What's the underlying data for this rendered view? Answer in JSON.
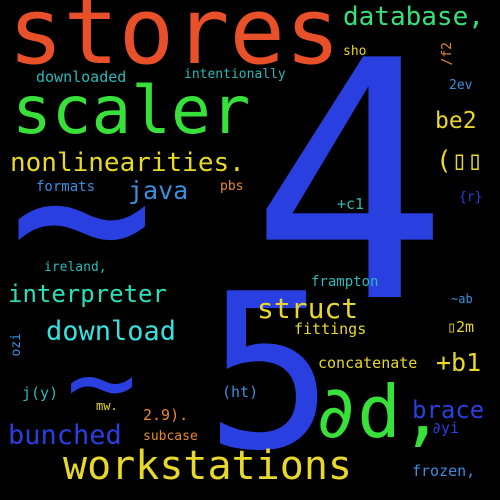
{
  "wordcloud": {
    "background": "#000000",
    "words": [
      {
        "id": "stores",
        "text": "stores",
        "color": "#e8502a"
      },
      {
        "id": "four",
        "text": "4",
        "color": "#2a3fe0"
      },
      {
        "id": "tilde-big",
        "text": "~",
        "color": "#2a3fe0"
      },
      {
        "id": "scaler",
        "text": "scaler",
        "color": "#38e03a"
      },
      {
        "id": "database",
        "text": "database,",
        "color": "#38e07a"
      },
      {
        "id": "nonlinearities",
        "text": "nonlinearities.",
        "color": "#e8d82a"
      },
      {
        "id": "java",
        "text": "java",
        "color": "#3a8fe0"
      },
      {
        "id": "downloaded",
        "text": "downloaded",
        "color": "#2ab8b8"
      },
      {
        "id": "intentionally",
        "text": "intentionally",
        "color": "#2ab8b8"
      },
      {
        "id": "sho",
        "text": "sho",
        "color": "#e8d82a"
      },
      {
        "id": "f2",
        "text": "/f2",
        "color": "#e88a2a"
      },
      {
        "id": "2ev",
        "text": "2ev",
        "color": "#3a8fe0"
      },
      {
        "id": "be2",
        "text": "be2",
        "color": "#e8d82a"
      },
      {
        "id": "paren-glyph",
        "text": "(▯▯",
        "color": "#e8d82a"
      },
      {
        "id": "formats",
        "text": "formats",
        "color": "#3a8fe0"
      },
      {
        "id": "pbs",
        "text": "pbs",
        "color": "#e88a2a"
      },
      {
        "id": "c1",
        "text": "+c1",
        "color": "#2ab8b8"
      },
      {
        "id": "r-brace",
        "text": "{r}",
        "color": "#2a3fe0"
      },
      {
        "id": "ireland",
        "text": "ireland,",
        "color": "#2ab8b8"
      },
      {
        "id": "interpreter",
        "text": "interpreter",
        "color": "#2ae0b8"
      },
      {
        "id": "frampton",
        "text": "frampton",
        "color": "#2ab8b8"
      },
      {
        "id": "five",
        "text": "5",
        "color": "#2a3fe0"
      },
      {
        "id": "struct",
        "text": "struct",
        "color": "#e8d82a"
      },
      {
        "id": "ab",
        "text": "~ab",
        "color": "#3a8fe0"
      },
      {
        "id": "download",
        "text": "download",
        "color": "#38e0e0"
      },
      {
        "id": "fittings",
        "text": "fittings",
        "color": "#e8d82a"
      },
      {
        "id": "2m",
        "text": "▯2m",
        "color": "#e8d82a"
      },
      {
        "id": "ozi",
        "text": "ozi",
        "color": "#3a8fe0"
      },
      {
        "id": "tilde-small",
        "text": "~",
        "color": "#2a3fe0"
      },
      {
        "id": "concatenate",
        "text": "concatenate",
        "color": "#e8d82a"
      },
      {
        "id": "b1",
        "text": "+b1",
        "color": "#e8d82a"
      },
      {
        "id": "jy",
        "text": "j(y)",
        "color": "#2ab8b8"
      },
      {
        "id": "mw",
        "text": "mw.",
        "color": "#e8d82a"
      },
      {
        "id": "ht",
        "text": "(ht)",
        "color": "#3a8fe0"
      },
      {
        "id": "dd",
        "text": "∂d,",
        "color": "#38e03a"
      },
      {
        "id": "brace",
        "text": "brace",
        "color": "#2a3fe0"
      },
      {
        "id": "dyi",
        "text": "∂yi",
        "color": "#2a3fe0"
      },
      {
        "id": "bunched",
        "text": "bunched",
        "color": "#2a3fe0"
      },
      {
        "id": "29",
        "text": "2.9).",
        "color": "#e88a2a"
      },
      {
        "id": "subcase",
        "text": "subcase",
        "color": "#e88a2a"
      },
      {
        "id": "workstations",
        "text": "workstations",
        "color": "#e8d82a"
      },
      {
        "id": "frozen",
        "text": "frozen,",
        "color": "#3a8fe0"
      }
    ]
  }
}
